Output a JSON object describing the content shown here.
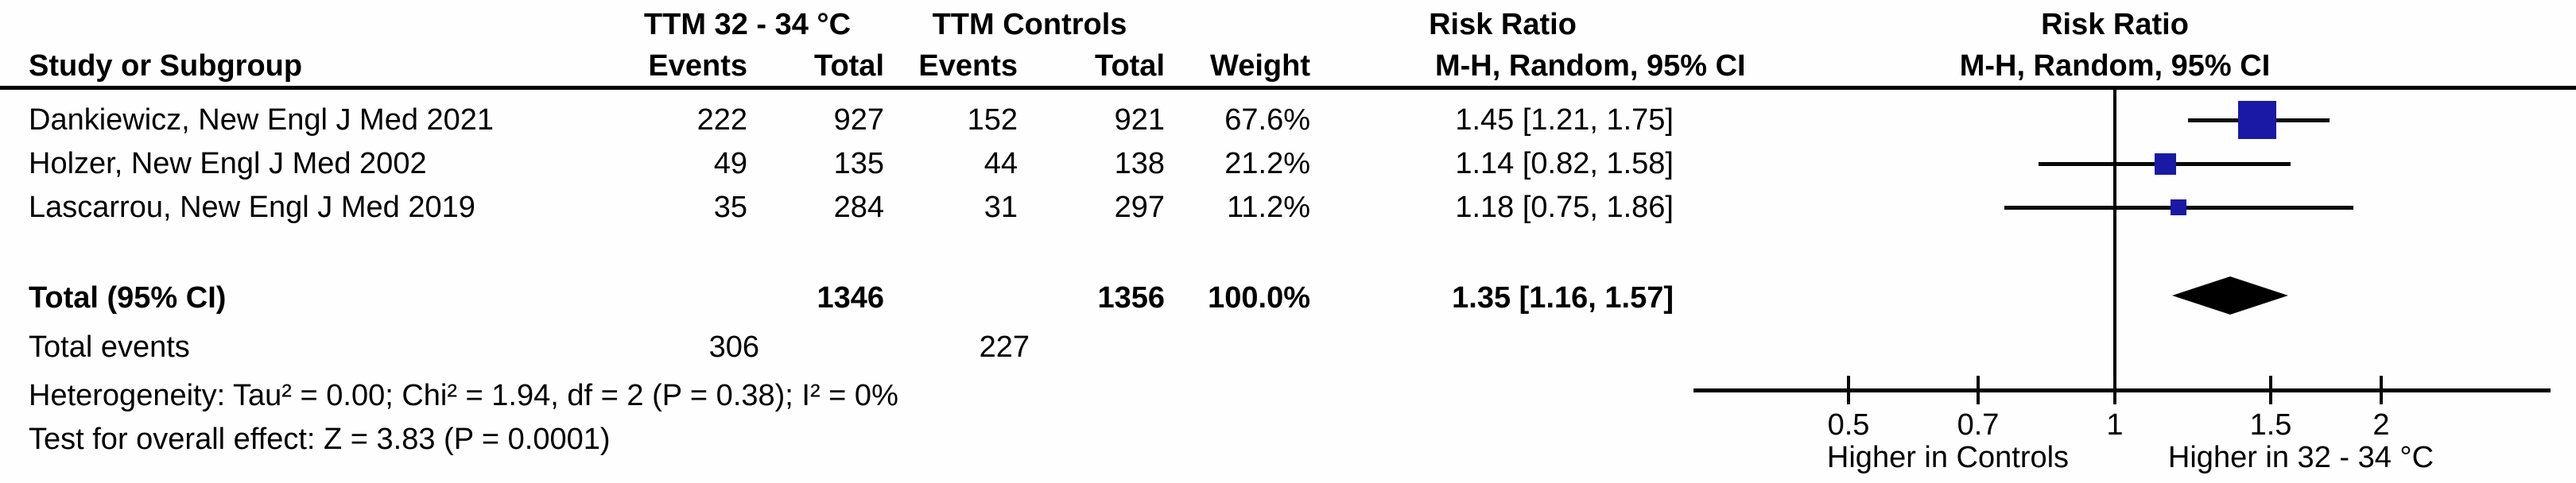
{
  "figure": {
    "group1_header": "TTM 32 - 34 °C",
    "group2_header": "TTM Controls",
    "rr_text_header_line1": "Risk Ratio",
    "rr_text_header_line2": "M-H, Random, 95% CI",
    "plot_header_line1": "Risk Ratio",
    "plot_header_line2": "M-H, Random, 95% CI"
  },
  "table": {
    "study_col_header": "Study or Subgroup",
    "events_col_header_1": "Events",
    "total_col_header_1": "Total",
    "events_col_header_2": "Events",
    "total_col_header_2": "Total",
    "weight_col_header": "Weight",
    "studies": [
      {
        "name": "Dankiewicz, New Engl J Med 2021",
        "events1": "222",
        "total1": "927",
        "events2": "152",
        "total2": "921",
        "weight": "67.6%",
        "weight_pct": 67.6,
        "rr_text": "1.45 [1.21, 1.75]",
        "rr": 1.45,
        "lo": 1.21,
        "hi": 1.75
      },
      {
        "name": "Holzer, New Engl J Med 2002",
        "events1": "49",
        "total1": "135",
        "events2": "44",
        "total2": "138",
        "weight": "21.2%",
        "weight_pct": 21.2,
        "rr_text": "1.14 [0.82, 1.58]",
        "rr": 1.14,
        "lo": 0.82,
        "hi": 1.58
      },
      {
        "name": "Lascarrou, New Engl J Med 2019",
        "events1": "35",
        "total1": "284",
        "events2": "31",
        "total2": "297",
        "weight": "11.2%",
        "weight_pct": 11.2,
        "rr_text": "1.18 [0.75, 1.86]",
        "rr": 1.18,
        "lo": 0.75,
        "hi": 1.86
      }
    ],
    "total_row": {
      "label": "Total (95% CI)",
      "total1": "1346",
      "total2": "1356",
      "weight": "100.0%",
      "rr_text": "1.35 [1.16, 1.57]",
      "rr": 1.35,
      "lo": 1.16,
      "hi": 1.57
    },
    "total_events_row": {
      "label": "Total events",
      "events1": "306",
      "events2": "227"
    },
    "heterogeneity": "Heterogeneity: Tau² = 0.00; Chi² = 1.94, df = 2 (P = 0.38); I² = 0%",
    "overall_effect": "Test for overall effect: Z = 3.83 (P = 0.0001)"
  },
  "plot": {
    "scale": "log10",
    "ticks": [
      0.5,
      0.7,
      1,
      1.5,
      2
    ],
    "tick_labels": [
      "0.5",
      "0.7",
      "1",
      "1.5",
      "2"
    ],
    "left_label": "Higher in Controls",
    "right_label": "Higher in 32 - 34 °C",
    "square_color": "#1919a6",
    "diamond_color": "#000000",
    "line_color": "#0a0a0a"
  },
  "chart_data": {
    "type": "scatter",
    "subtype": "forest_plot_meta_analysis",
    "effect_measure": "Risk Ratio (M-H, Random, 95% CI)",
    "x_scale": "log",
    "x_ticks": [
      0.5,
      0.7,
      1,
      1.5,
      2
    ],
    "xlim": [
      0.35,
      3.0
    ],
    "null_line": 1,
    "axis_label_left": "Higher in Controls",
    "axis_label_right": "Higher in 32 - 34 °C",
    "groups": [
      "TTM 32 - 34 °C",
      "TTM Controls"
    ],
    "studies": [
      {
        "name": "Dankiewicz, New Engl J Med 2021",
        "events_exp": 222,
        "total_exp": 927,
        "events_ctrl": 152,
        "total_ctrl": 921,
        "weight_pct": 67.6,
        "rr": 1.45,
        "ci_low": 1.21,
        "ci_high": 1.75
      },
      {
        "name": "Holzer, New Engl J Med 2002",
        "events_exp": 49,
        "total_exp": 135,
        "events_ctrl": 44,
        "total_ctrl": 138,
        "weight_pct": 21.2,
        "rr": 1.14,
        "ci_low": 0.82,
        "ci_high": 1.58
      },
      {
        "name": "Lascarrou, New Engl J Med 2019",
        "events_exp": 35,
        "total_exp": 284,
        "events_ctrl": 31,
        "total_ctrl": 297,
        "weight_pct": 11.2,
        "rr": 1.18,
        "ci_low": 0.75,
        "ci_high": 1.86
      }
    ],
    "total": {
      "total_exp": 1346,
      "total_ctrl": 1356,
      "events_exp": 306,
      "events_ctrl": 227,
      "weight_pct": 100.0,
      "rr": 1.35,
      "ci_low": 1.16,
      "ci_high": 1.57
    },
    "heterogeneity": {
      "tau2": 0.0,
      "chi2": 1.94,
      "df": 2,
      "p": 0.38,
      "i2_pct": 0
    },
    "overall_effect": {
      "z": 3.83,
      "p": 0.0001
    }
  }
}
